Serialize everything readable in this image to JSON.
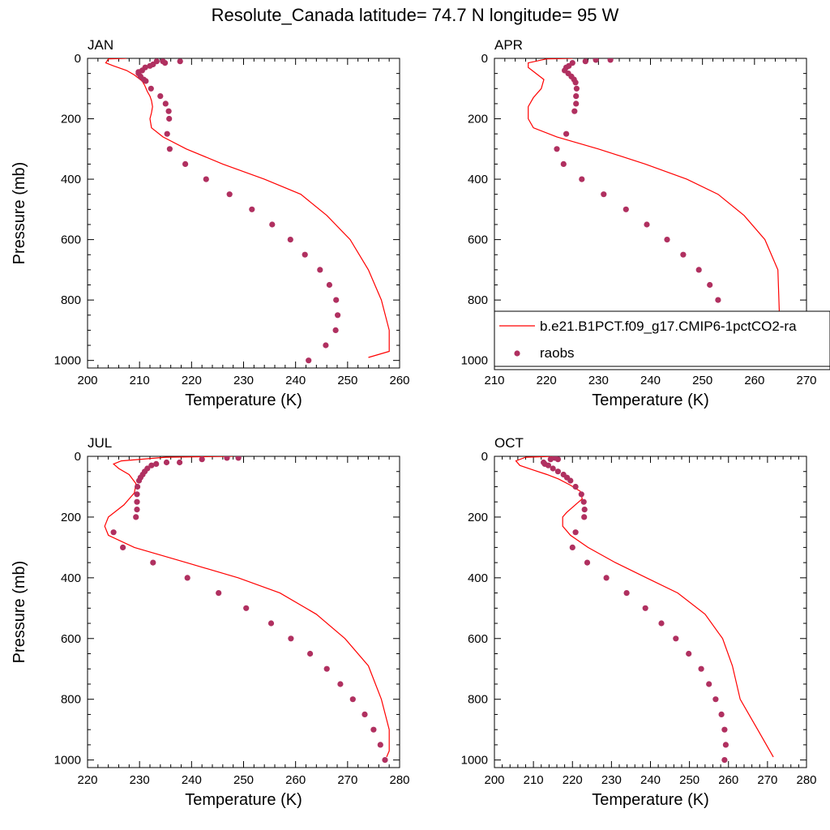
{
  "title": "Resolute_Canada  latitude= 74.7 N longitude= 95 W",
  "colors": {
    "model": "#ff0000",
    "obs": "#b03060",
    "axis": "#000000"
  },
  "legend": {
    "model_label": "b.e21.B1PCT.f09_g17.CMIP6-1pctCO2-ra",
    "obs_label": "raobs",
    "panel": "APR",
    "placement": "bottom-right of APR panel"
  },
  "chart_data": [
    {
      "type": "line",
      "panel_label": "JAN",
      "xlabel": "Temperature (K)",
      "ylabel": "Pressure (mb)",
      "xlim": [
        200,
        260
      ],
      "ylim": [
        1000,
        0
      ],
      "xticks": [
        200,
        210,
        220,
        230,
        240,
        250,
        260
      ],
      "yticks": [
        0,
        200,
        400,
        600,
        800,
        1000
      ],
      "series": [
        {
          "style": "line",
          "x": [
            207.5,
            204.0,
            203.5,
            205.0,
            207.5,
            209.0,
            210.5,
            211.0,
            211.5,
            212.0,
            212.3,
            212.5,
            212.3,
            212.0,
            212.3,
            214.5,
            219.0,
            226.0,
            234.0,
            241.0,
            246.0,
            250.5,
            254.0,
            256.5,
            258.0,
            258.0,
            254.0
          ],
          "y": [
            0,
            2,
            15,
            25,
            40,
            55,
            75,
            90,
            110,
            125,
            140,
            160,
            180,
            200,
            230,
            260,
            300,
            350,
            400,
            450,
            520,
            600,
            700,
            800,
            900,
            970,
            990
          ]
        },
        {
          "style": "markers",
          "x": [
            217.8,
            214.5,
            214.9,
            213.3,
            212.6,
            212.0,
            211.1,
            210.5,
            209.8,
            209.8,
            210.2,
            210.8,
            211.2,
            212.2,
            214.0,
            215.0,
            215.6,
            215.7,
            215.3,
            215.8,
            218.8,
            222.8,
            227.3,
            231.6,
            235.5,
            239.0,
            241.8,
            244.7,
            246.5,
            247.8,
            248.1,
            247.7,
            245.8,
            242.5
          ],
          "y": [
            10,
            10,
            15,
            10,
            20,
            25,
            30,
            40,
            45,
            50,
            60,
            70,
            75,
            100,
            125,
            150,
            175,
            200,
            250,
            300,
            350,
            400,
            450,
            500,
            550,
            600,
            650,
            700,
            750,
            800,
            850,
            900,
            950,
            1000
          ]
        }
      ]
    },
    {
      "type": "line",
      "panel_label": "APR",
      "xlabel": "Temperature (K)",
      "ylabel": "",
      "xlim": [
        210,
        270
      ],
      "ylim": [
        1000,
        0
      ],
      "xticks": [
        210,
        220,
        230,
        240,
        250,
        260,
        270
      ],
      "yticks": [
        0,
        200,
        400,
        600,
        800,
        1000
      ],
      "series": [
        {
          "style": "line",
          "x": [
            225.0,
            220.0,
            216.5,
            216.5,
            218.0,
            219.5,
            219.0,
            217.5,
            216.5,
            216.5,
            217.5,
            222.0,
            230.0,
            239.0,
            247.0,
            253.0,
            258.0,
            262.0,
            264.5,
            264.8,
            259.5
          ],
          "y": [
            0,
            2,
            15,
            30,
            50,
            70,
            100,
            130,
            160,
            200,
            230,
            260,
            300,
            350,
            400,
            450,
            520,
            600,
            700,
            850,
            990
          ]
        },
        {
          "style": "markers",
          "x": [
            232.3,
            229.5,
            227.5,
            225.0,
            224.3,
            223.8,
            223.5,
            224.2,
            224.8,
            225.3,
            225.6,
            225.8,
            225.7,
            225.7,
            225.4,
            223.8,
            222.0,
            223.3,
            226.8,
            231.0,
            235.3,
            239.3,
            243.2,
            246.3,
            249.3,
            251.4,
            253.0,
            254.0,
            254.2,
            254.1,
            253.3,
            251.0
          ],
          "y": [
            5,
            5,
            10,
            15,
            25,
            30,
            40,
            50,
            60,
            70,
            80,
            100,
            125,
            150,
            175,
            250,
            300,
            350,
            400,
            450,
            500,
            550,
            600,
            650,
            700,
            750,
            800,
            850,
            900,
            900,
            950,
            1000
          ]
        }
      ]
    },
    {
      "type": "line",
      "panel_label": "JUL",
      "xlabel": "Temperature (K)",
      "ylabel": "Pressure (mb)",
      "xlim": [
        220,
        280
      ],
      "ylim": [
        1000,
        0
      ],
      "xticks": [
        220,
        230,
        240,
        250,
        260,
        270,
        280
      ],
      "yticks": [
        0,
        200,
        400,
        600,
        800,
        1000
      ],
      "series": [
        {
          "style": "line",
          "x": [
            248.0,
            235.0,
            226.5,
            225.0,
            226.0,
            228.0,
            229.3,
            229.0,
            227.0,
            224.0,
            223.3,
            224.0,
            229.0,
            239.0,
            249.0,
            257.0,
            264.0,
            269.5,
            274.0,
            276.5,
            278.0,
            278.0,
            277.5
          ],
          "y": [
            0,
            3,
            15,
            25,
            40,
            60,
            90,
            120,
            160,
            200,
            230,
            260,
            300,
            350,
            400,
            450,
            520,
            600,
            690,
            800,
            900,
            970,
            990
          ]
        },
        {
          "style": "markers",
          "x": [
            249.0,
            246.8,
            242.0,
            237.7,
            235.2,
            233.2,
            232.3,
            231.5,
            231.0,
            230.6,
            230.2,
            229.9,
            229.6,
            229.5,
            229.5,
            229.5,
            229.3,
            225.0,
            226.8,
            232.6,
            239.2,
            245.2,
            250.5,
            255.3,
            259.1,
            262.8,
            266.0,
            268.6,
            271.0,
            273.3,
            275.0,
            276.3,
            277.2
          ],
          "y": [
            5,
            5,
            10,
            20,
            20,
            25,
            30,
            40,
            50,
            60,
            70,
            80,
            100,
            125,
            150,
            175,
            200,
            250,
            300,
            350,
            400,
            450,
            500,
            550,
            600,
            650,
            700,
            750,
            800,
            850,
            900,
            950,
            1000
          ]
        }
      ]
    },
    {
      "type": "line",
      "panel_label": "OCT",
      "xlabel": "Temperature (K)",
      "ylabel": "",
      "xlim": [
        200,
        280
      ],
      "ylim": [
        1000,
        0
      ],
      "xticks": [
        200,
        210,
        220,
        230,
        240,
        250,
        260,
        270,
        280
      ],
      "yticks": [
        0,
        200,
        400,
        600,
        800,
        1000
      ],
      "series": [
        {
          "style": "line",
          "x": [
            215.0,
            208.0,
            205.5,
            206.5,
            210.0,
            213.5,
            216.5,
            219.5,
            222.0,
            222.5,
            218.5,
            217.5,
            217.5,
            219.5,
            224.0,
            231.0,
            239.0,
            247.0,
            254.0,
            258.5,
            261.0,
            263.0,
            267.5,
            271.5
          ],
          "y": [
            0,
            3,
            15,
            30,
            45,
            60,
            75,
            95,
            115,
            140,
            185,
            200,
            230,
            260,
            300,
            350,
            400,
            450,
            520,
            600,
            690,
            800,
            900,
            990
          ]
        },
        {
          "style": "markers",
          "x": [
            216.3,
            215.5,
            214.4,
            212.6,
            212.9,
            213.8,
            215.0,
            216.3,
            217.7,
            218.6,
            219.5,
            220.8,
            222.3,
            222.9,
            223.1,
            223.0,
            220.8,
            220.0,
            223.8,
            228.7,
            233.9,
            238.7,
            242.8,
            246.5,
            249.8,
            253.0,
            255.0,
            256.7,
            258.2,
            259.0,
            259.3,
            259.0
          ],
          "y": [
            10,
            5,
            10,
            20,
            25,
            30,
            40,
            50,
            60,
            70,
            80,
            100,
            125,
            150,
            175,
            200,
            250,
            300,
            350,
            400,
            450,
            500,
            550,
            600,
            650,
            700,
            750,
            800,
            850,
            900,
            950,
            1000
          ]
        }
      ]
    }
  ]
}
